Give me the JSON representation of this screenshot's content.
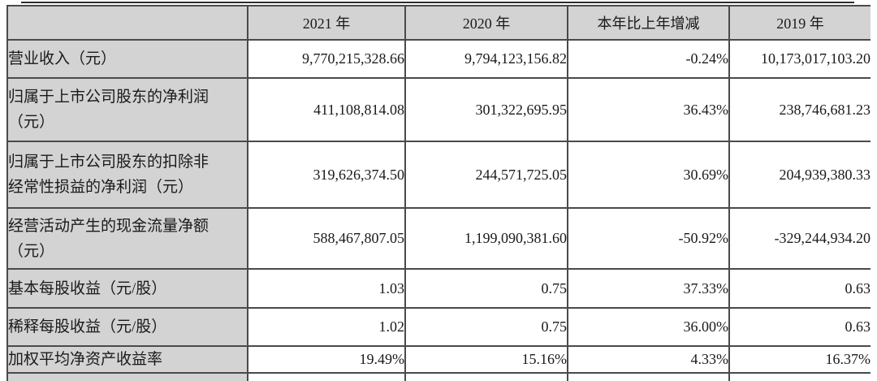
{
  "table": {
    "columns": [
      "",
      "2021 年",
      "2020 年",
      "本年比上年增减",
      "2019 年"
    ],
    "rows": [
      {
        "label_lines": [
          "营业收入（元）"
        ],
        "values": [
          "9,770,215,328.66",
          "9,794,123,156.82",
          "-0.24%",
          "10,173,017,103.20"
        ]
      },
      {
        "label_lines": [
          "归属于上市公司股东的净利润",
          "（元）"
        ],
        "values": [
          "411,108,814.08",
          "301,322,695.95",
          "36.43%",
          "238,746,681.23"
        ]
      },
      {
        "label_lines": [
          "归属于上市公司股东的扣除非",
          "经常性损益的净利润（元）"
        ],
        "values": [
          "319,626,374.50",
          "244,571,725.05",
          "30.69%",
          "204,939,380.33"
        ]
      },
      {
        "label_lines": [
          "经营活动产生的现金流量净额",
          "（元）"
        ],
        "values": [
          "588,467,807.05",
          "1,199,090,381.60",
          "-50.92%",
          "-329,244,934.20"
        ]
      },
      {
        "label_lines": [
          "基本每股收益（元/股）"
        ],
        "values": [
          "1.03",
          "0.75",
          "37.33%",
          "0.63"
        ]
      },
      {
        "label_lines": [
          "稀释每股收益（元/股）"
        ],
        "values": [
          "1.02",
          "0.75",
          "36.00%",
          "0.63"
        ]
      },
      {
        "label_lines": [
          "加权平均净资产收益率"
        ],
        "values": [
          "19.49%",
          "15.16%",
          "4.33%",
          "16.37%"
        ]
      }
    ],
    "colors": {
      "header_bg": "#d3d3d3",
      "cell_bg": "#ffffff",
      "border": "#4a4a4a",
      "text": "#1a1a1a"
    }
  }
}
